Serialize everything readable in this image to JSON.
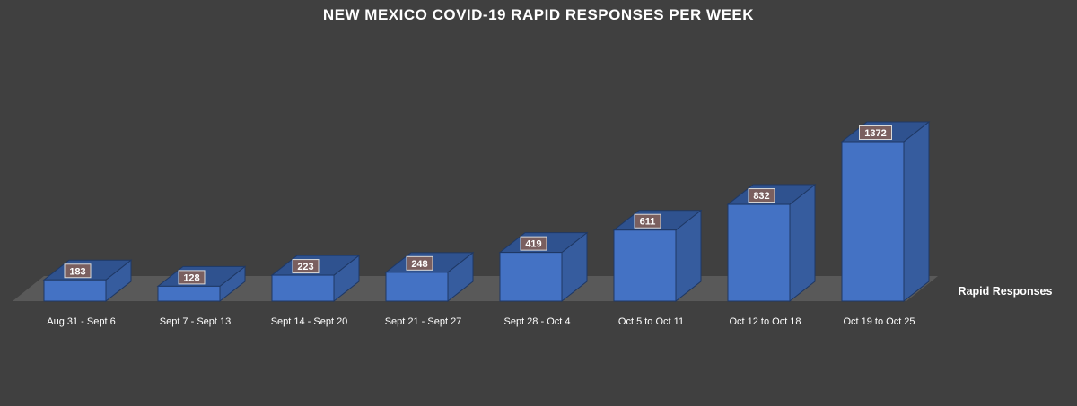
{
  "chart_data": {
    "type": "bar",
    "title": "NEW MEXICO COVID-19 RAPID RESPONSES PER WEEK",
    "categories": [
      "Aug 31 - Sept 6",
      "Sept 7 - Sept 13",
      "Sept 14 - Sept 20",
      "Sept 21 - Sept 27",
      "Sept 28 - Oct 4",
      "Oct 5 to Oct 11",
      "Oct 12 to Oct 18",
      "Oct 19 to Oct 25"
    ],
    "series": [
      {
        "name": "Rapid Responses",
        "values": [
          183,
          128,
          223,
          248,
          419,
          611,
          832,
          1372
        ]
      }
    ],
    "xlabel": "",
    "ylabel": "",
    "grid": false,
    "legend": "none",
    "style": "3d-column"
  },
  "colors": {
    "background": "#404040",
    "floor": "#595959",
    "bar_front": "#4472c4",
    "bar_top": "#2f528f",
    "bar_side": "#365c9e",
    "bar_edge": "#1f3864",
    "label_box": "#7a5f5f",
    "label_border": "#d9d9d9",
    "text": "#ffffff"
  }
}
